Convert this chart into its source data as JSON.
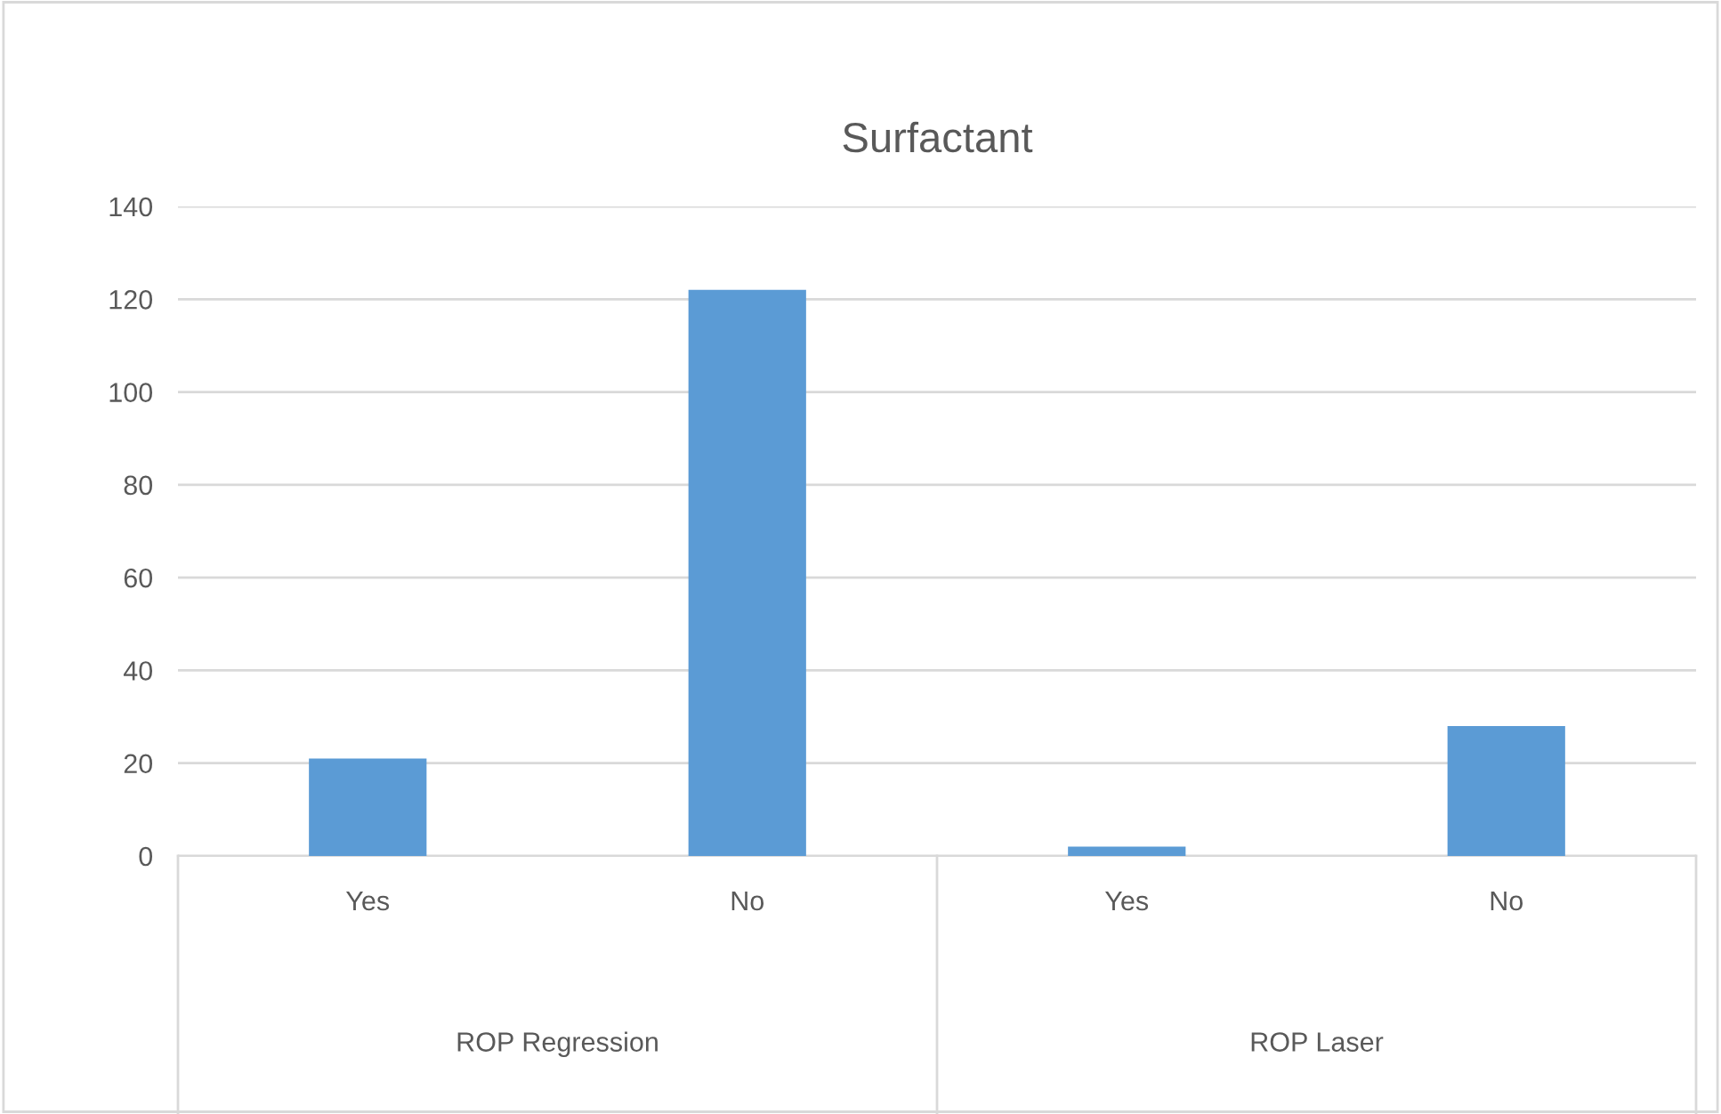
{
  "chart_data": {
    "type": "bar",
    "title": "Surfactant",
    "categories": [
      "Yes",
      "No",
      "Yes",
      "No"
    ],
    "values": [
      21,
      122,
      2,
      28
    ],
    "color": "#5b9bd5",
    "ylim": [
      0,
      140
    ],
    "yticks": [
      0,
      20,
      40,
      60,
      80,
      100,
      120,
      140
    ],
    "grid": "y",
    "annotations": [
      "ROP Regression",
      "ROP Laser"
    ]
  }
}
